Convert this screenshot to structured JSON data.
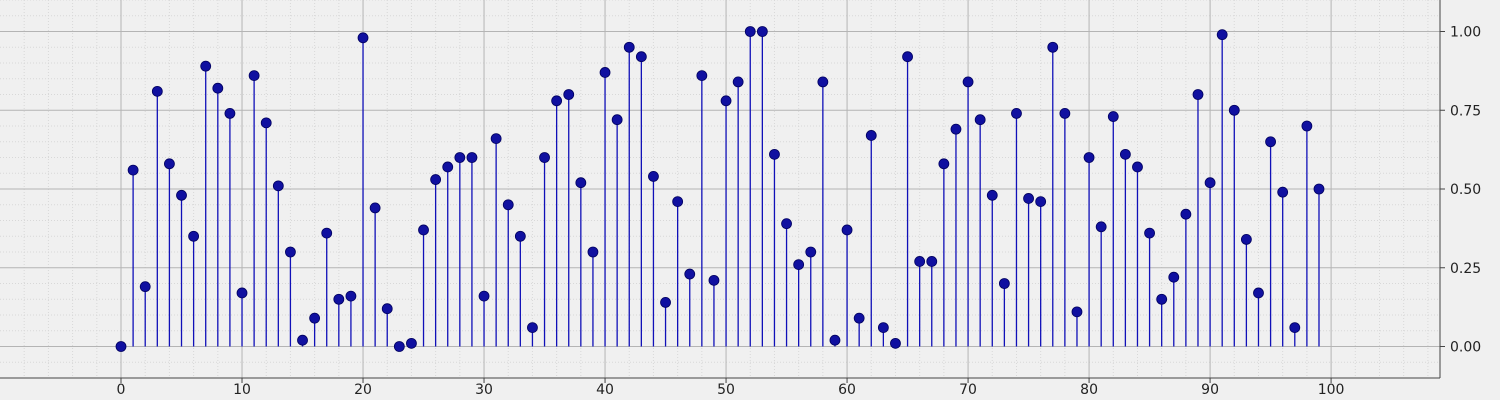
{
  "chart_data": {
    "type": "stem",
    "title": "",
    "xlabel": "",
    "ylabel": "",
    "xlim": [
      -10,
      109
    ],
    "ylim": [
      -0.1,
      1.1
    ],
    "x_ticks": [
      0,
      10,
      20,
      30,
      40,
      50,
      60,
      70,
      80,
      90,
      100
    ],
    "y_ticks": [
      0.0,
      0.25,
      0.5,
      0.75,
      1.0
    ],
    "x_tick_labels": [
      "0",
      "10",
      "20",
      "30",
      "40",
      "50",
      "60",
      "70",
      "80",
      "90",
      "100"
    ],
    "y_tick_labels": [
      "0.00",
      "0.25",
      "0.50",
      "0.75",
      "1.00"
    ],
    "y_axis_side": "right",
    "grid": true,
    "minor_grid": true,
    "colors": {
      "stem": "#1010b8",
      "marker": "#1010a0",
      "background": "#f0f0f0",
      "grid": "#b4b4b4",
      "minor_grid": "#d8d8d8"
    },
    "x": [
      0,
      1,
      2,
      3,
      4,
      5,
      6,
      7,
      8,
      9,
      10,
      11,
      12,
      13,
      14,
      15,
      16,
      17,
      18,
      19,
      20,
      21,
      22,
      23,
      24,
      25,
      26,
      27,
      28,
      29,
      30,
      31,
      32,
      33,
      34,
      35,
      36,
      37,
      38,
      39,
      40,
      41,
      42,
      43,
      44,
      45,
      46,
      47,
      48,
      49,
      50,
      51,
      52,
      53,
      54,
      55,
      56,
      57,
      58,
      59,
      60,
      61,
      62,
      63,
      64,
      65,
      66,
      67,
      68,
      69,
      70,
      71,
      72,
      73,
      74,
      75,
      76,
      77,
      78,
      79,
      80,
      81,
      82,
      83,
      84,
      85,
      86,
      87,
      88,
      89,
      90,
      91,
      92,
      93,
      94,
      95,
      96,
      97,
      98,
      99
    ],
    "values": [
      0.0,
      0.56,
      0.19,
      0.81,
      0.58,
      0.48,
      0.35,
      0.89,
      0.82,
      0.74,
      0.17,
      0.86,
      0.71,
      0.51,
      0.3,
      0.02,
      0.09,
      0.36,
      0.15,
      0.16,
      0.98,
      0.44,
      0.12,
      0.0,
      0.01,
      0.37,
      0.53,
      0.57,
      0.6,
      0.6,
      0.16,
      0.66,
      0.45,
      0.35,
      0.06,
      0.6,
      0.78,
      0.8,
      0.52,
      0.3,
      0.87,
      0.72,
      0.95,
      0.92,
      0.54,
      0.14,
      0.46,
      0.23,
      0.86,
      0.21,
      0.78,
      0.84,
      1.0,
      1.0,
      0.61,
      0.39,
      0.26,
      0.3,
      0.84,
      0.02,
      0.37,
      0.09,
      0.67,
      0.06,
      0.01,
      0.92,
      0.27,
      0.27,
      0.58,
      0.69,
      0.84,
      0.72,
      0.48,
      0.2,
      0.74,
      0.47,
      0.46,
      0.95,
      0.74,
      0.11,
      0.6,
      0.38,
      0.73,
      0.61,
      0.57,
      0.36,
      0.15,
      0.22,
      0.42,
      0.8,
      0.52,
      0.99,
      0.75,
      0.34,
      0.17,
      0.65,
      0.49,
      0.06,
      0.7,
      0.5
    ]
  }
}
